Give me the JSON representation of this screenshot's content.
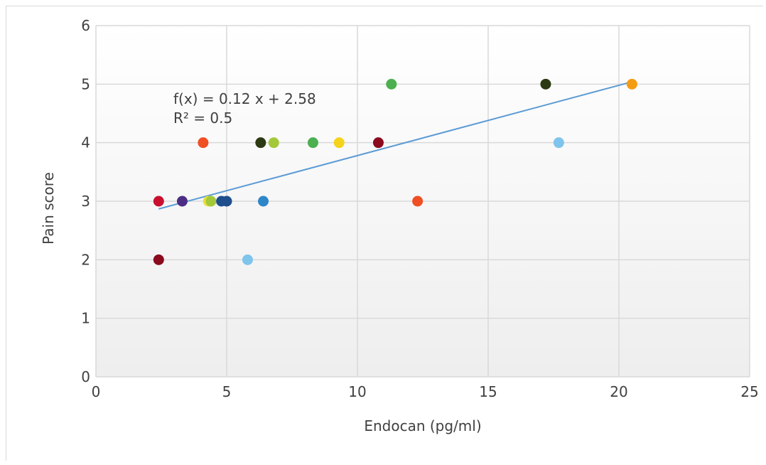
{
  "chart_data": {
    "type": "scatter",
    "title": "",
    "xlabel": "Endocan (pg/ml)",
    "ylabel": "Pain score",
    "xlim": [
      0,
      25
    ],
    "ylim": [
      0,
      6
    ],
    "xticks": [
      "0",
      "5",
      "10",
      "15",
      "20",
      "25"
    ],
    "yticks": [
      "0",
      "1",
      "2",
      "3",
      "4",
      "5",
      "6"
    ],
    "grid": true,
    "legend": "none",
    "trendline": {
      "type": "linear",
      "slope": 0.12,
      "intercept": 2.58,
      "x_range": [
        2.4,
        20.5
      ],
      "color": "#5b9bd5",
      "equation_label": "f(x) = 0.12 x + 2.58",
      "r2_label": "R² = 0.5"
    },
    "points": [
      {
        "x": 2.4,
        "y": 3,
        "color": "#c8102e"
      },
      {
        "x": 2.4,
        "y": 2,
        "color": "#8b0a1e"
      },
      {
        "x": 3.3,
        "y": 3,
        "color": "#4b2e83"
      },
      {
        "x": 4.1,
        "y": 4,
        "color": "#f04e23"
      },
      {
        "x": 4.3,
        "y": 3,
        "color": "#e8e03a"
      },
      {
        "x": 4.4,
        "y": 3,
        "color": "#a3c93a"
      },
      {
        "x": 4.8,
        "y": 3,
        "color": "#1f4e8c"
      },
      {
        "x": 5.0,
        "y": 3,
        "color": "#1f4e8c"
      },
      {
        "x": 5.8,
        "y": 2,
        "color": "#7fc4ec"
      },
      {
        "x": 6.3,
        "y": 4,
        "color": "#2b3a12"
      },
      {
        "x": 6.4,
        "y": 3,
        "color": "#2e86c9"
      },
      {
        "x": 6.8,
        "y": 4,
        "color": "#a3c93a"
      },
      {
        "x": 8.3,
        "y": 4,
        "color": "#4caf50"
      },
      {
        "x": 9.3,
        "y": 4,
        "color": "#f5d31a"
      },
      {
        "x": 10.8,
        "y": 4,
        "color": "#8b0a1e"
      },
      {
        "x": 11.3,
        "y": 5,
        "color": "#4caf50"
      },
      {
        "x": 12.3,
        "y": 3,
        "color": "#f04e23"
      },
      {
        "x": 17.2,
        "y": 5,
        "color": "#2b3a12"
      },
      {
        "x": 17.7,
        "y": 4,
        "color": "#7fc4ec"
      },
      {
        "x": 20.5,
        "y": 5,
        "color": "#f39c12"
      }
    ]
  }
}
